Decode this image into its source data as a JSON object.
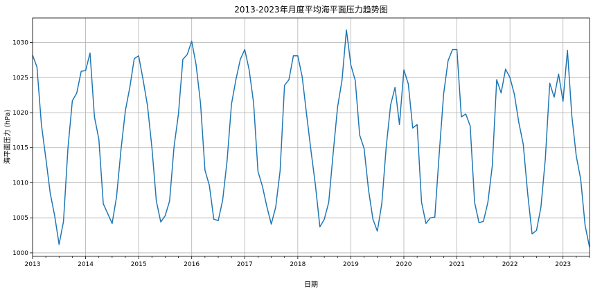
{
  "chart_data": {
    "type": "line",
    "title": "2013-2023年月度平均海平面压力趋势图",
    "xlabel": "日期",
    "ylabel": "海平面压力 (hPa)",
    "x_start": "2013-01",
    "x_end": "2023-07",
    "xlim": [
      "2013-01",
      "2023-07"
    ],
    "ylim": [
      999.5,
      1033.5
    ],
    "x_ticks": [
      "2013",
      "2014",
      "2015",
      "2016",
      "2017",
      "2018",
      "2019",
      "2020",
      "2021",
      "2022",
      "2023"
    ],
    "y_ticks": [
      1000,
      1005,
      1010,
      1015,
      1020,
      1025,
      1030
    ],
    "grid": true,
    "series": [
      {
        "name": "",
        "color": "#1f77b4",
        "x": [
          "2013-01",
          "2013-02",
          "2013-03",
          "2013-04",
          "2013-05",
          "2013-06",
          "2013-07",
          "2013-08",
          "2013-09",
          "2013-10",
          "2013-11",
          "2013-12",
          "2014-01",
          "2014-02",
          "2014-03",
          "2014-04",
          "2014-05",
          "2014-06",
          "2014-07",
          "2014-08",
          "2014-09",
          "2014-10",
          "2014-11",
          "2014-12",
          "2015-01",
          "2015-02",
          "2015-03",
          "2015-04",
          "2015-05",
          "2015-06",
          "2015-07",
          "2015-08",
          "2015-09",
          "2015-10",
          "2015-11",
          "2015-12",
          "2016-01",
          "2016-02",
          "2016-03",
          "2016-04",
          "2016-05",
          "2016-06",
          "2016-07",
          "2016-08",
          "2016-09",
          "2016-10",
          "2016-11",
          "2016-12",
          "2017-01",
          "2017-02",
          "2017-03",
          "2017-04",
          "2017-05",
          "2017-06",
          "2017-07",
          "2017-08",
          "2017-09",
          "2017-10",
          "2017-11",
          "2017-12",
          "2018-01",
          "2018-02",
          "2018-03",
          "2018-04",
          "2018-05",
          "2018-06",
          "2018-07",
          "2018-08",
          "2018-09",
          "2018-10",
          "2018-11",
          "2018-12",
          "2019-01",
          "2019-02",
          "2019-03",
          "2019-04",
          "2019-05",
          "2019-06",
          "2019-07",
          "2019-08",
          "2019-09",
          "2019-10",
          "2019-11",
          "2019-12",
          "2020-01",
          "2020-02",
          "2020-03",
          "2020-04",
          "2020-05",
          "2020-06",
          "2020-07",
          "2020-08",
          "2020-09",
          "2020-10",
          "2020-11",
          "2020-12",
          "2021-01",
          "2021-02",
          "2021-03",
          "2021-04",
          "2021-05",
          "2021-06",
          "2021-07",
          "2021-08",
          "2021-09",
          "2021-10",
          "2021-11",
          "2021-12",
          "2022-01",
          "2022-02",
          "2022-03",
          "2022-04",
          "2022-05",
          "2022-06",
          "2022-07",
          "2022-08",
          "2022-09",
          "2022-10",
          "2022-11",
          "2022-12",
          "2023-01",
          "2023-02",
          "2023-03",
          "2023-04",
          "2023-05",
          "2023-06",
          "2023-07"
        ],
        "values": [
          1028.2,
          1026.5,
          1018.3,
          1013.5,
          1008.5,
          1005.3,
          1001.2,
          1004.5,
          1014.9,
          1021.7,
          1022.8,
          1025.9,
          1026.0,
          1028.5,
          1019.4,
          1016.2,
          1007.0,
          1005.6,
          1004.2,
          1008.0,
          1014.7,
          1020.3,
          1023.6,
          1027.7,
          1028.1,
          1024.7,
          1021.0,
          1015.0,
          1007.4,
          1004.4,
          1005.3,
          1007.4,
          1015.1,
          1019.8,
          1027.6,
          1028.3,
          1030.2,
          1026.8,
          1021.3,
          1011.8,
          1009.6,
          1004.8,
          1004.6,
          1007.5,
          1013.1,
          1021.2,
          1024.7,
          1027.6,
          1029.0,
          1026.1,
          1021.4,
          1011.6,
          1009.5,
          1006.6,
          1004.1,
          1006.5,
          1011.7,
          1023.9,
          1024.7,
          1028.1,
          1028.1,
          1025.1,
          1019.7,
          1014.5,
          1009.6,
          1003.7,
          1004.8,
          1007.2,
          1014.2,
          1020.8,
          1024.6,
          1031.8,
          1026.8,
          1024.6,
          1016.8,
          1014.9,
          1009.0,
          1004.8,
          1003.1,
          1007.0,
          1015.1,
          1021.1,
          1023.6,
          1018.3,
          1026.1,
          1024.1,
          1017.8,
          1018.3,
          1007.2,
          1004.2,
          1005.0,
          1005.1,
          1014.2,
          1022.7,
          1027.4,
          1029.0,
          1029.0,
          1019.4,
          1019.8,
          1018.1,
          1007.2,
          1004.3,
          1004.5,
          1007.2,
          1012.4,
          1024.7,
          1022.8,
          1026.2,
          1025.0,
          1022.6,
          1018.6,
          1015.5,
          1008.5,
          1002.7,
          1003.2,
          1006.5,
          1013.4,
          1024.2,
          1022.2,
          1025.5,
          1021.6,
          1028.9,
          1019.5,
          1013.8,
          1010.5,
          1003.9,
          1000.8
        ]
      }
    ]
  }
}
